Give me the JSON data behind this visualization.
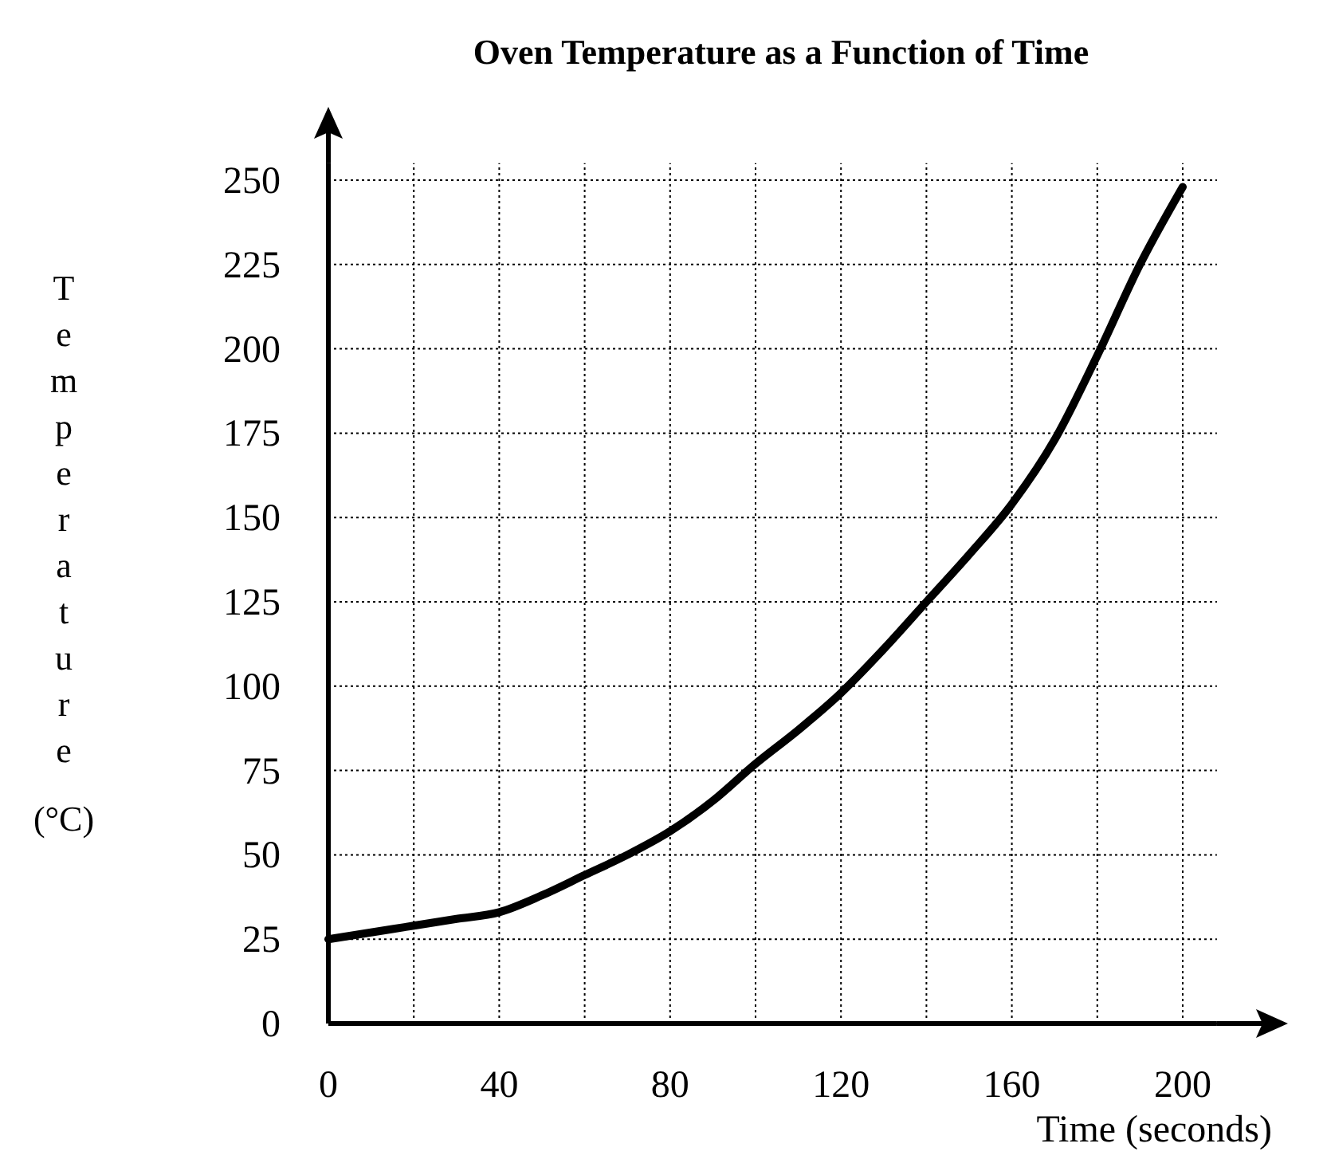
{
  "chart_data": {
    "type": "line",
    "title": "Oven Temperature as a Function of Time",
    "xlabel": "Time (seconds)",
    "ylabel": "Temperature (°C)",
    "x": [
      0,
      10,
      20,
      30,
      40,
      50,
      60,
      70,
      80,
      90,
      100,
      110,
      120,
      130,
      140,
      150,
      160,
      170,
      180,
      190,
      200
    ],
    "series": [
      {
        "color": "#000000",
        "values": [
          25,
          27,
          29,
          31,
          33,
          38,
          44,
          50,
          57,
          66,
          77,
          87,
          98,
          111,
          125,
          139,
          154,
          173,
          198,
          225,
          248
        ]
      }
    ],
    "xlim": [
      0,
      208
    ],
    "ylim": [
      0,
      255
    ],
    "xticks": [
      0,
      40,
      80,
      120,
      160,
      200
    ],
    "yticks": [
      0,
      25,
      50,
      75,
      100,
      125,
      150,
      175,
      200,
      225,
      250
    ],
    "grid": true,
    "line_style": "solid"
  }
}
